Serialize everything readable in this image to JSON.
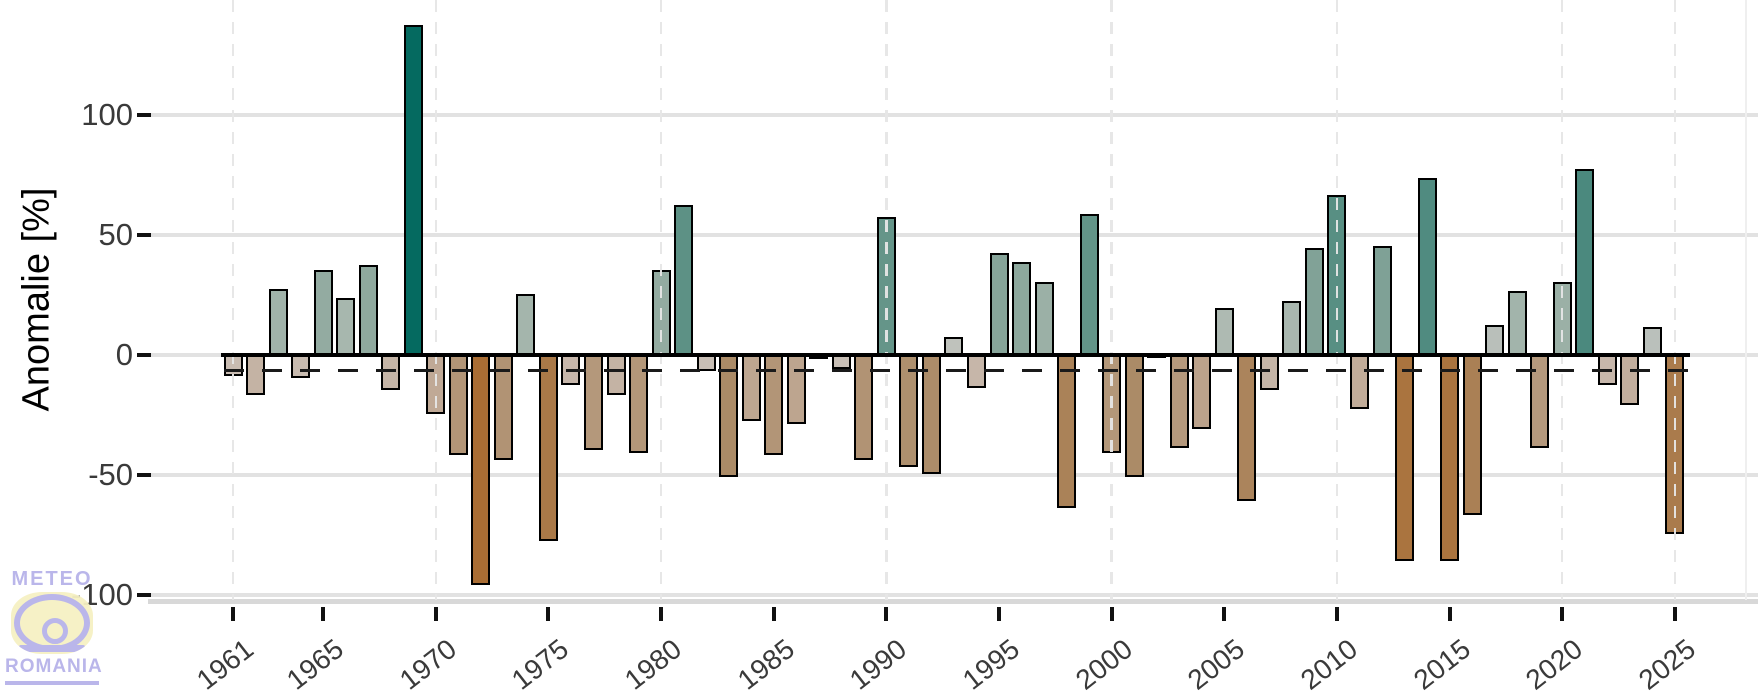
{
  "y_axis": {
    "title": "Anomalie [%]",
    "tick_labels": [
      "100",
      "50",
      "0",
      "-50",
      "-100"
    ],
    "tick_values": [
      100,
      50,
      0,
      -50,
      -100
    ]
  },
  "x_axis": {
    "tick_years": [
      1961,
      1965,
      1970,
      1975,
      1980,
      1985,
      1990,
      1995,
      2000,
      2005,
      2010,
      2015,
      2020,
      2025
    ]
  },
  "chart_data": {
    "type": "bar",
    "title": "",
    "xlabel": "",
    "ylabel": "Anomalie [%]",
    "ylim": [
      -100,
      140
    ],
    "grid": "horizontal solid light; dashed vertical at decade years",
    "legend": "none",
    "x": [
      1961,
      1962,
      1963,
      1964,
      1965,
      1966,
      1967,
      1968,
      1969,
      1970,
      1971,
      1972,
      1973,
      1974,
      1975,
      1976,
      1977,
      1978,
      1979,
      1980,
      1981,
      1982,
      1983,
      1984,
      1985,
      1986,
      1987,
      1988,
      1989,
      1990,
      1991,
      1992,
      1993,
      1994,
      1995,
      1996,
      1997,
      1998,
      1999,
      2000,
      2001,
      2002,
      2003,
      2004,
      2005,
      2006,
      2007,
      2008,
      2009,
      2010,
      2011,
      2012,
      2013,
      2014,
      2015,
      2016,
      2017,
      2018,
      2019,
      2020,
      2021,
      2022,
      2023,
      2024,
      2025
    ],
    "values": [
      -8,
      -16,
      27,
      -9,
      35,
      23,
      37,
      -14,
      137,
      -24,
      -41,
      -95,
      -43,
      25,
      -77,
      -12,
      -39,
      -16,
      -40,
      35,
      62,
      -6,
      -50,
      -27,
      -41,
      -28,
      -1,
      -5,
      -43,
      57,
      -46,
      -49,
      7,
      -13,
      42,
      38,
      30,
      -63,
      58,
      -40,
      -50,
      0,
      -38,
      -30,
      19,
      -60,
      -14,
      22,
      44,
      66,
      -22,
      45,
      -85,
      73,
      -85,
      -66,
      12,
      26,
      -38,
      30,
      77,
      -12,
      -20,
      11,
      -74
    ],
    "reference_line_dashed_y": -6.5,
    "dashed_gridline_years": [
      1961,
      1970,
      1980,
      1990,
      2000,
      2010,
      2020,
      2025
    ],
    "color_scale": [
      {
        "v": -100,
        "c": "#a96a2e"
      },
      {
        "v": -50,
        "c": "#ab8b67"
      },
      {
        "v": -25,
        "c": "#bfa894"
      },
      {
        "v": -8,
        "c": "#c9bcb2"
      },
      {
        "v": 0,
        "c": "#c6c3bd"
      },
      {
        "v": 10,
        "c": "#bcc1bc"
      },
      {
        "v": 25,
        "c": "#a4b5ac"
      },
      {
        "v": 40,
        "c": "#8aa69b"
      },
      {
        "v": 60,
        "c": "#5f9286"
      },
      {
        "v": 140,
        "c": "#02685e"
      }
    ]
  },
  "style_colors": {
    "grid": "#e2e2e2",
    "grid_dash_vertical": "#e6e6e6",
    "axis_line": "#d8d8d8",
    "tick": "#111111",
    "tick_text": "#3a3a3a",
    "bar_border": "#000000",
    "reference_dash": "#1a1a1a"
  },
  "logo": {
    "line1": "METEO",
    "line2": "ROMANIA",
    "lavender": "#b7b3e9",
    "yellow": "#f6f1c3"
  }
}
